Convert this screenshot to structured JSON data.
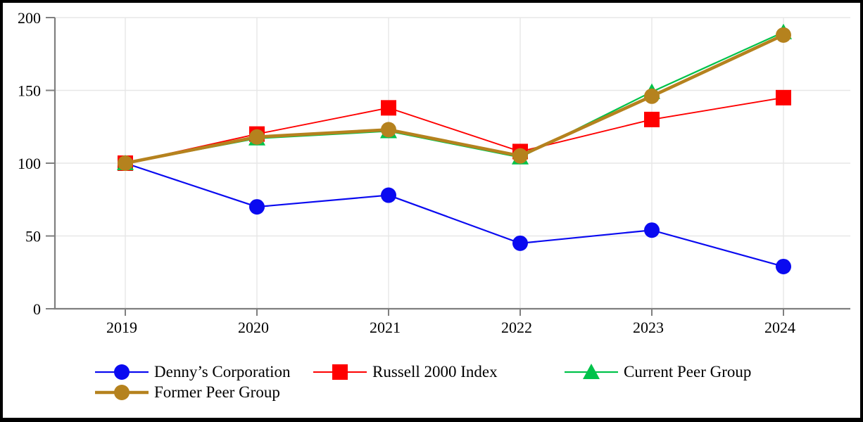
{
  "chart_data": {
    "type": "line",
    "title": "",
    "xlabel": "",
    "ylabel": "",
    "categories": [
      "2019",
      "2020",
      "2021",
      "2022",
      "2023",
      "2024"
    ],
    "series": [
      {
        "name": "Denny’s Corporation",
        "marker": "circle",
        "color": "#0a0af0",
        "line_width": 2.2,
        "values": [
          100,
          70,
          78,
          45,
          54,
          29
        ]
      },
      {
        "name": "Russell 2000 Index",
        "marker": "square",
        "color": "#fe0000",
        "line_width": 1.9,
        "values": [
          100,
          120,
          138,
          108,
          130,
          145
        ]
      },
      {
        "name": "Current Peer Group",
        "marker": "triangle",
        "color": "#00c24a",
        "line_width": 2.2,
        "values": [
          100,
          117,
          122,
          104,
          149,
          190
        ]
      },
      {
        "name": "Former Peer Group",
        "marker": "circle",
        "color": "#b5821e",
        "line_width": 4.6,
        "values": [
          100,
          118,
          123,
          105,
          146,
          188
        ]
      }
    ],
    "y_axis": {
      "min": 0,
      "max": 200,
      "tick_labels": [
        "0",
        "50",
        "100",
        "150",
        "200"
      ],
      "tick_values": [
        0,
        50,
        100,
        150,
        200
      ]
    },
    "grid": true,
    "legend_position": "bottom",
    "colors": {
      "axis": "#7f7f7f",
      "gridline": "#e7e7e7",
      "text": "#000000",
      "background": "#ffffff",
      "page_border": "#000000"
    }
  }
}
